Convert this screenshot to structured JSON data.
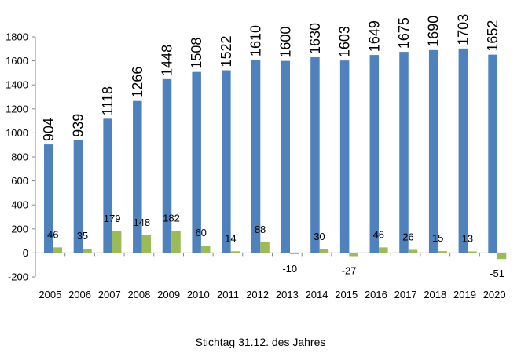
{
  "chart_data": {
    "type": "bar",
    "categories": [
      "2005",
      "2006",
      "2007",
      "2008",
      "2009",
      "2010",
      "2011",
      "2012",
      "2013",
      "2014",
      "2015",
      "2016",
      "2017",
      "2018",
      "2019",
      "2020"
    ],
    "series": [
      {
        "values": [
          904,
          939,
          1118,
          1266,
          1448,
          1508,
          1522,
          1610,
          1600,
          1630,
          1603,
          1649,
          1675,
          1690,
          1703,
          1652
        ],
        "color": "#4f81bd"
      },
      {
        "values": [
          46,
          35,
          179,
          148,
          182,
          60,
          14,
          88,
          -10,
          30,
          -27,
          46,
          26,
          15,
          13,
          -51
        ],
        "color": "#9bbb59"
      }
    ],
    "y_ticks": [
      "-200",
      "0",
      "200",
      "400",
      "600",
      "800",
      "1000",
      "1200",
      "1400",
      "1600",
      "1800"
    ],
    "ylim": [
      -200,
      1800
    ],
    "xlabel": "Stichtag 31.12. des Jahres",
    "grid": false,
    "legend": "none"
  }
}
